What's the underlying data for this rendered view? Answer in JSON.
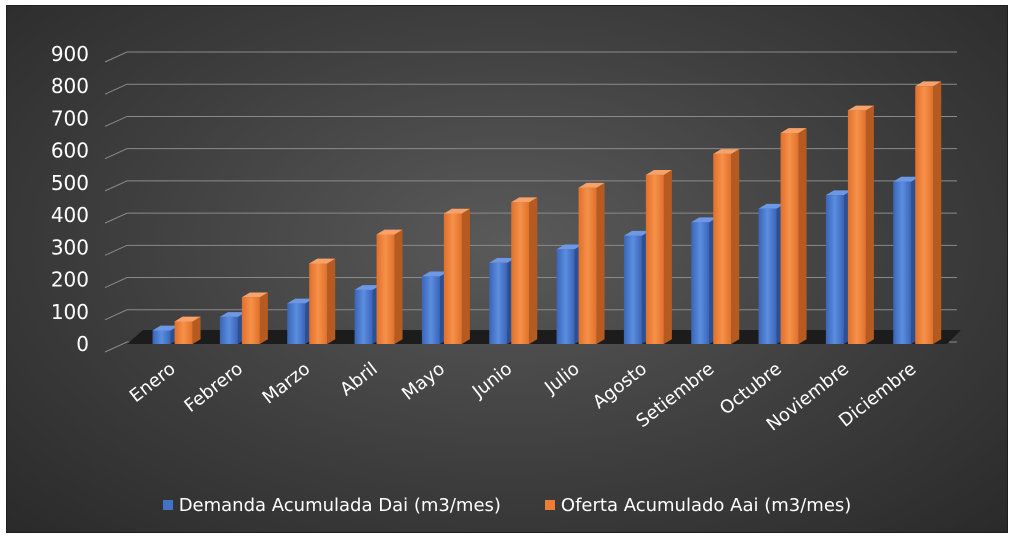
{
  "chart_data": {
    "type": "bar",
    "title": "",
    "xlabel": "",
    "ylabel": "",
    "ylim": [
      0,
      900
    ],
    "yticks": [
      "0",
      "100",
      "200",
      "300",
      "400",
      "500",
      "600",
      "700",
      "800",
      "900"
    ],
    "grid": true,
    "legend_position": "bottom",
    "categories": [
      "Enero",
      "Febrero",
      "Marzo",
      "Abril",
      "Mayo",
      "Junio",
      "Julio",
      "Agosto",
      "Setiembre",
      "Octubre",
      "Noviembre",
      "Diciembre"
    ],
    "series": [
      {
        "name": "Demanda Acumulada Dai (m3/mes)",
        "color": "#4472C4",
        "values": [
          42,
          84,
          126,
          168,
          210,
          252,
          294,
          336,
          378,
          420,
          462,
          504
        ]
      },
      {
        "name": "Oferta Acumulado Aai (m3/mes)",
        "color": "#ED7D31",
        "values": [
          70,
          145,
          250,
          340,
          405,
          440,
          485,
          525,
          590,
          655,
          725,
          800
        ]
      }
    ]
  }
}
